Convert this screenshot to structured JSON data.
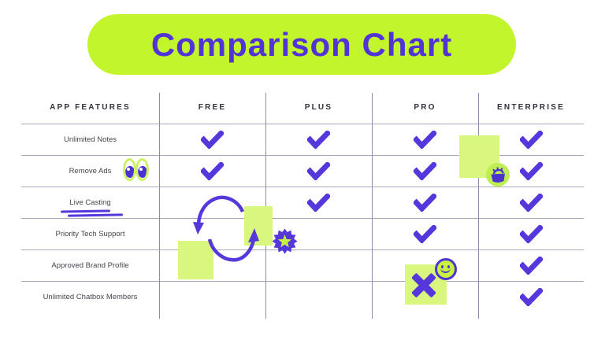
{
  "title": "Comparison Chart",
  "colors": {
    "accent_purple": "#5537dc",
    "title_lime": "#c3f52d",
    "sticky_lime": "#d9f77f",
    "grid_line": "#aaa8b8"
  },
  "table": {
    "feature_header": "APP FEATURES",
    "plan_headers": [
      "FREE",
      "PLUS",
      "PRO",
      "ENTERPRISE"
    ],
    "features": [
      {
        "label": "Unlimited Notes",
        "availability": [
          true,
          true,
          true,
          true
        ]
      },
      {
        "label": "Remove Ads",
        "availability": [
          true,
          true,
          true,
          true
        ]
      },
      {
        "label": "Live Casting",
        "availability": [
          false,
          true,
          true,
          true
        ]
      },
      {
        "label": "Priority Tech Support",
        "availability": [
          false,
          false,
          true,
          true
        ]
      },
      {
        "label": "Approved Brand Profile",
        "availability": [
          false,
          false,
          false,
          true
        ]
      },
      {
        "label": "Unlimited Chatbox Members",
        "availability": [
          false,
          false,
          false,
          true
        ]
      }
    ]
  },
  "chart_data": {
    "type": "table",
    "title": "Comparison Chart",
    "columns": [
      "APP FEATURES",
      "FREE",
      "PLUS",
      "PRO",
      "ENTERPRISE"
    ],
    "rows": [
      {
        "feature": "Unlimited Notes",
        "FREE": true,
        "PLUS": true,
        "PRO": true,
        "ENTERPRISE": true
      },
      {
        "feature": "Remove Ads",
        "FREE": true,
        "PLUS": true,
        "PRO": true,
        "ENTERPRISE": true
      },
      {
        "feature": "Live Casting",
        "FREE": false,
        "PLUS": true,
        "PRO": true,
        "ENTERPRISE": true
      },
      {
        "feature": "Priority Tech Support",
        "FREE": false,
        "PLUS": false,
        "PRO": true,
        "ENTERPRISE": true
      },
      {
        "feature": "Approved Brand Profile",
        "FREE": false,
        "PLUS": false,
        "PRO": false,
        "ENTERPRISE": true
      },
      {
        "feature": "Unlimited Chatbox Members",
        "FREE": false,
        "PLUS": false,
        "PRO": false,
        "ENTERPRISE": true
      }
    ]
  },
  "decorations": [
    "googly-eyes-sticker",
    "underline-scribble",
    "cycle-arrows",
    "sticky-note x4",
    "starburst-badge",
    "basket-sticker",
    "smiley-sticker",
    "x-mark"
  ]
}
